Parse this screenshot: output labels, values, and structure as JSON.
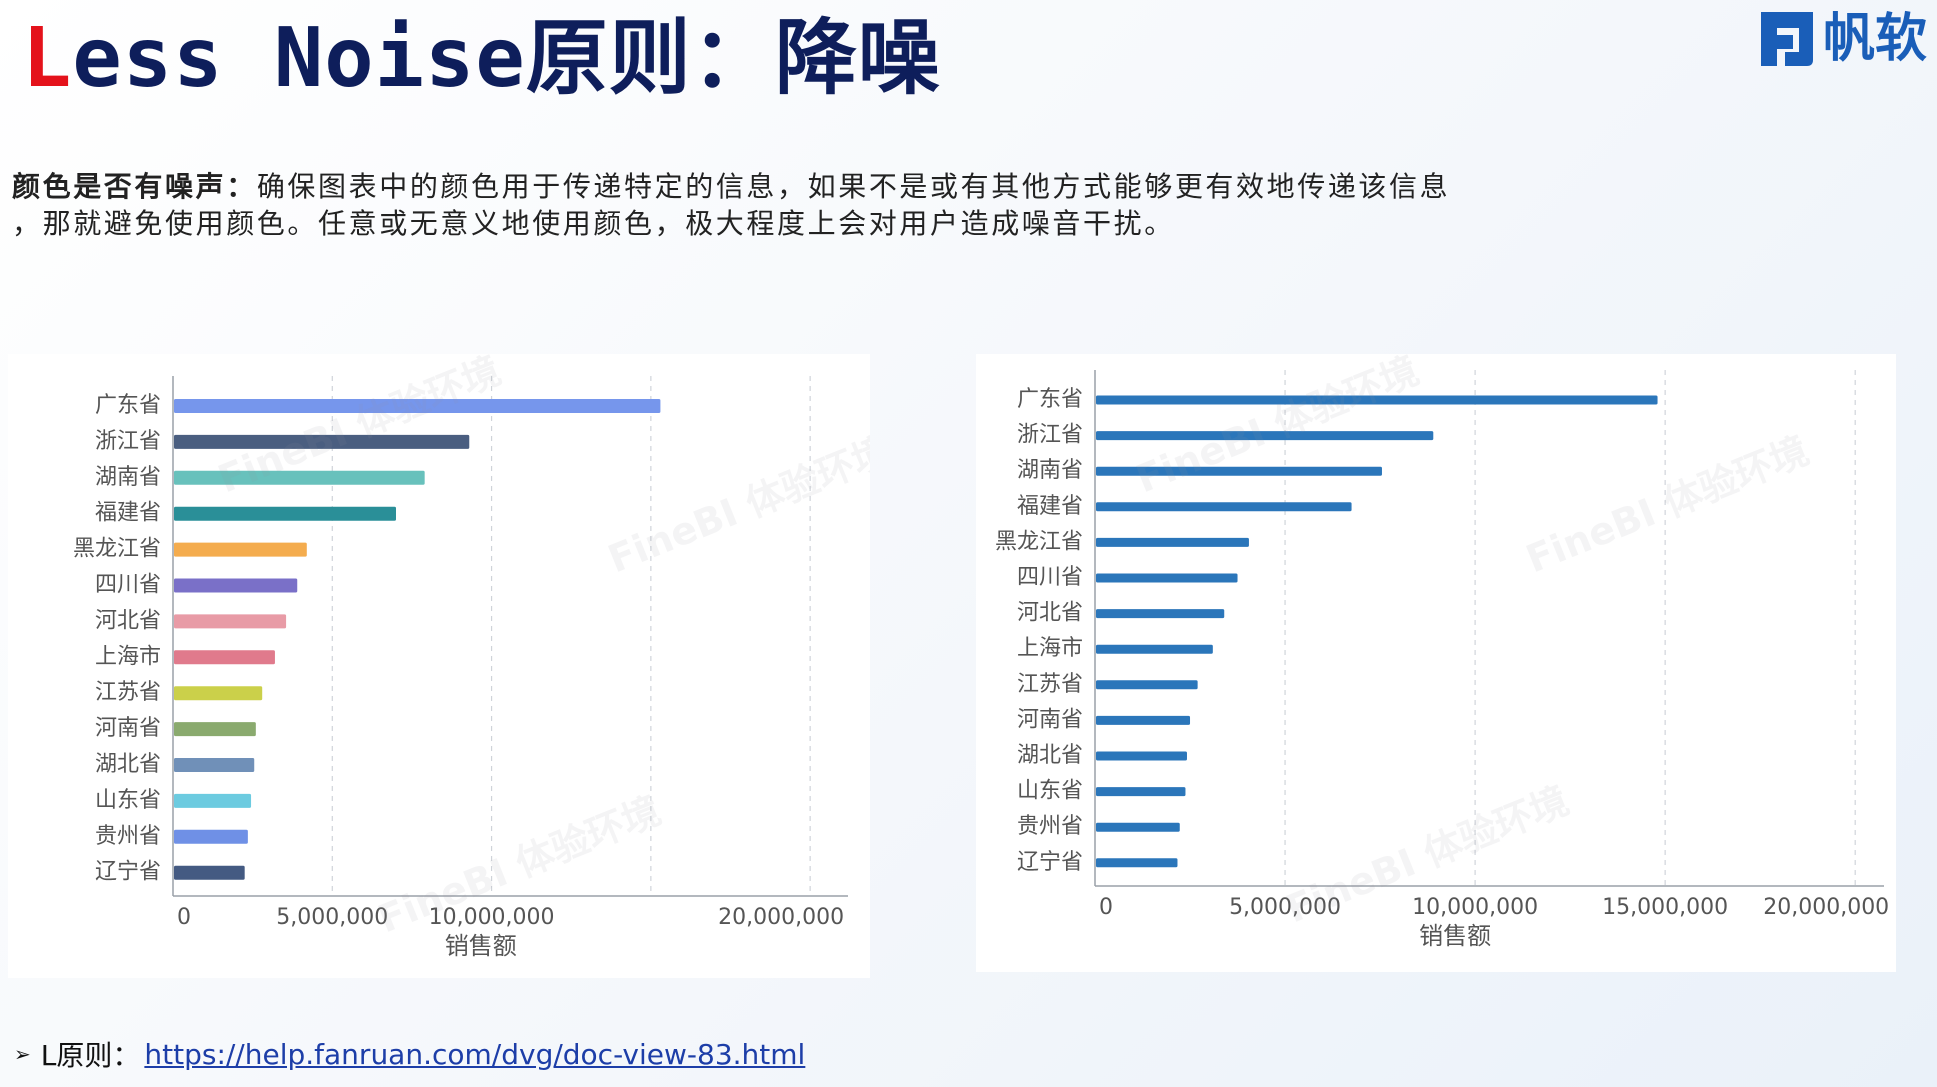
{
  "header": {
    "title_prefix": "L",
    "title_rest": "ess Noise原则：降噪",
    "logo_text": "帆软"
  },
  "description": {
    "lead": "颜色是否有噪声：",
    "line1_rest": "确保图表中的颜色用于传递特定的信息，如果不是或有其他方式能够更有效地传递该信息",
    "line2": "，那就避免使用颜色。任意或无意义地使用颜色，极大程度上会对用户造成噪音干扰。"
  },
  "watermark_text": "FineBI 体验环境",
  "footer": {
    "bullet": "➢",
    "label": "L原则：",
    "link": "https://help.fanruan.com/dvg/doc-view-83.html"
  },
  "colors": {
    "title_red": "#e4121b",
    "title_navy": "#0e1e5b",
    "brand_blue": "#1a5eb8",
    "single_bar": "#2b76ba",
    "link": "#1d3ea8"
  },
  "chart_data": [
    {
      "type": "bar",
      "orientation": "horizontal",
      "id": "noisy",
      "categories": [
        "广东省",
        "浙江省",
        "湖南省",
        "福建省",
        "黑龙江省",
        "四川省",
        "河北省",
        "上海市",
        "江苏省",
        "河南省",
        "湖北省",
        "山东省",
        "贵州省",
        "辽宁省"
      ],
      "values": [
        15300000,
        9300000,
        7900000,
        7000000,
        4200000,
        3900000,
        3550000,
        3200000,
        2800000,
        2600000,
        2550000,
        2450000,
        2350000,
        2250000
      ],
      "bar_colors": [
        "#7696ec",
        "#4a5e80",
        "#68c1bc",
        "#2a8f98",
        "#f4ac4e",
        "#7a70c8",
        "#e89ba6",
        "#e07a8c",
        "#cbd04a",
        "#8aaa6e",
        "#7090b8",
        "#6ccbe0",
        "#6f90e6",
        "#445a82"
      ],
      "xlim": [
        0,
        21000000
      ],
      "x_ticks": [
        0,
        5000000,
        10000000,
        20000000
      ],
      "x_tick_labels": [
        "0",
        "5,000,000",
        "10,000,000",
        "20,000,000"
      ],
      "gridlines": [
        5000000,
        10000000,
        15000000,
        20000000
      ],
      "xlabel": "销售额",
      "ylabel": "",
      "title": ""
    },
    {
      "type": "bar",
      "orientation": "horizontal",
      "id": "clean",
      "categories": [
        "广东省",
        "浙江省",
        "湖南省",
        "福建省",
        "黑龙江省",
        "四川省",
        "河北省",
        "上海市",
        "江苏省",
        "河南省",
        "湖北省",
        "山东省",
        "贵州省",
        "辽宁省"
      ],
      "values": [
        14800000,
        8900000,
        7550000,
        6750000,
        4050000,
        3750000,
        3400000,
        3100000,
        2700000,
        2500000,
        2420000,
        2380000,
        2230000,
        2170000
      ],
      "bar_color": "#2b76ba",
      "xlim": [
        0,
        20600000
      ],
      "x_ticks": [
        0,
        5000000,
        10000000,
        15000000,
        20000000
      ],
      "x_tick_labels": [
        "0",
        "5,000,000",
        "10,000,000",
        "15,000,000",
        "20,000,000"
      ],
      "gridlines": [
        5000000,
        10000000,
        15000000,
        20000000
      ],
      "xlabel": "销售额",
      "ylabel": "",
      "title": ""
    }
  ]
}
